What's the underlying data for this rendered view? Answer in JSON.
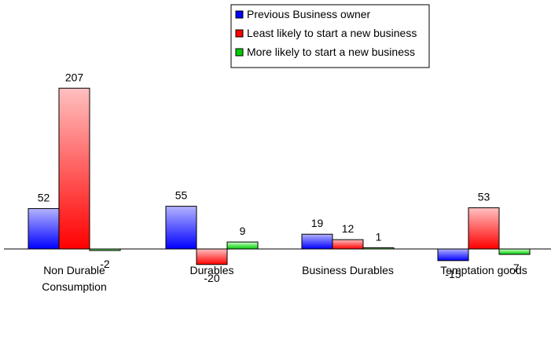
{
  "chart_data": {
    "type": "bar",
    "title": "",
    "xlabel": "",
    "ylabel": "",
    "categories": [
      [
        "Non Durable",
        "Consumption"
      ],
      [
        "Durables"
      ],
      [
        "Business Durables"
      ],
      [
        "Temptation goods"
      ]
    ],
    "series": [
      {
        "name": "Previous Business owner",
        "values": [
          52,
          55,
          19,
          -15
        ],
        "color_top": "#b3b3ff",
        "color_bottom": "#0000ff"
      },
      {
        "name": "Least likely to start a new business",
        "values": [
          207,
          -20,
          12,
          53
        ],
        "color_top": "#ffc0c0",
        "color_bottom": "#ff0000"
      },
      {
        "name": "More likely to start a new business",
        "values": [
          -2,
          9,
          1,
          -7
        ],
        "color_top": "#ccffcc",
        "color_bottom": "#00cc00"
      }
    ],
    "legend_position": "top-right",
    "grid": false
  }
}
